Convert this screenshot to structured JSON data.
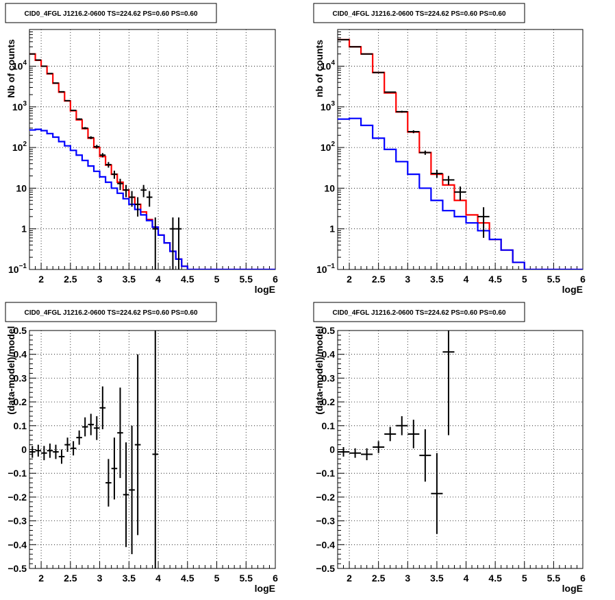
{
  "chart_data": [
    {
      "type": "histogram-logy",
      "title": "CID0_4FGL J1216.2-0600 TS=224.62 PS=0.60 PS=0.60",
      "xlabel": "logE",
      "ylabel": "Nb of counts",
      "xlim": [
        1.8,
        6.0
      ],
      "ylim": [
        0.1,
        80000
      ],
      "log_y": true,
      "grid": true,
      "x_ticks": [
        "2",
        "2.5",
        "3",
        "3.5",
        "4",
        "4.5",
        "5",
        "5.5",
        "6"
      ],
      "y_ticks": [
        "10^-1",
        "1",
        "10",
        "10^2",
        "10^3",
        "10^4"
      ],
      "bin_edges": [
        1.8,
        1.9,
        2.0,
        2.1,
        2.2,
        2.3,
        2.4,
        2.5,
        2.6,
        2.7,
        2.8,
        2.9,
        3.0,
        3.1,
        3.2,
        3.3,
        3.4,
        3.5,
        3.6,
        3.7,
        3.8,
        3.9,
        4.0,
        4.1,
        4.2,
        4.3,
        4.4,
        4.5,
        4.6,
        4.7,
        4.8,
        4.9,
        5.0,
        5.1,
        5.2,
        5.3,
        5.4,
        5.5,
        5.6,
        5.7,
        5.8,
        5.9,
        6.0
      ],
      "series": [
        {
          "color": "#ff0000",
          "values": [
            20000,
            14000,
            10000,
            6500,
            3800,
            2300,
            1400,
            800,
            480,
            290,
            170,
            100,
            60,
            37,
            22,
            14,
            9,
            6,
            4,
            2.6,
            1.7,
            1.1,
            0.7,
            0.45,
            0.28,
            0.18,
            0.12,
            0.1,
            0.1,
            0.1,
            0.1,
            0.1,
            0.1,
            0.1,
            0.1,
            0.1,
            0.1,
            0.1,
            0.1,
            0.1,
            0.1,
            0.1
          ]
        },
        {
          "color": "#0000ff",
          "values": [
            270,
            280,
            260,
            220,
            180,
            140,
            110,
            85,
            65,
            48,
            35,
            26,
            19,
            14,
            10,
            7.5,
            5.5,
            4,
            3,
            2.2,
            1.6,
            1.1,
            0.7,
            0.45,
            0.28,
            0.18,
            0.12,
            0.1,
            0.1,
            0.1,
            0.1,
            0.1,
            0.1,
            0.1,
            0.1,
            0.1,
            0.1,
            0.1,
            0.1,
            0.1,
            0.1,
            0.1
          ]
        }
      ],
      "points": [
        {
          "x": 1.85,
          "y": 20000,
          "err": 200
        },
        {
          "x": 1.95,
          "y": 14200,
          "err": 150
        },
        {
          "x": 2.05,
          "y": 10000,
          "err": 120
        },
        {
          "x": 2.15,
          "y": 6600,
          "err": 90
        },
        {
          "x": 2.25,
          "y": 3850,
          "err": 70
        },
        {
          "x": 2.35,
          "y": 2350,
          "err": 55
        },
        {
          "x": 2.45,
          "y": 1420,
          "err": 40
        },
        {
          "x": 2.55,
          "y": 820,
          "err": 30
        },
        {
          "x": 2.65,
          "y": 500,
          "err": 22
        },
        {
          "x": 2.75,
          "y": 300,
          "err": 18
        },
        {
          "x": 2.85,
          "y": 175,
          "err": 14
        },
        {
          "x": 2.95,
          "y": 105,
          "err": 11
        },
        {
          "x": 3.05,
          "y": 65,
          "err": 8
        },
        {
          "x": 3.15,
          "y": 38,
          "err": 6
        },
        {
          "x": 3.25,
          "y": 22,
          "err": 5
        },
        {
          "x": 3.35,
          "y": 13,
          "err": 4
        },
        {
          "x": 3.45,
          "y": 9,
          "err": 3
        },
        {
          "x": 3.55,
          "y": 6,
          "err": 2.5
        },
        {
          "x": 3.65,
          "y": 4,
          "err": 2
        },
        {
          "x": 3.75,
          "y": 9,
          "err": 3
        },
        {
          "x": 3.85,
          "y": 6,
          "err": 2.5
        },
        {
          "x": 3.95,
          "y": 1,
          "err": 0.9
        },
        {
          "x": 4.25,
          "y": 1,
          "err": 0.9
        },
        {
          "x": 4.35,
          "y": 1,
          "err": 0.9
        }
      ]
    },
    {
      "type": "histogram-logy",
      "title": "CID0_4FGL J1216.2-0600 TS=224.62 PS=0.60 PS=0.60",
      "xlabel": "logE",
      "ylabel": "nb of counts",
      "xlim": [
        1.8,
        6.0
      ],
      "ylim": [
        0.1,
        80000
      ],
      "log_y": true,
      "grid": true,
      "x_ticks": [
        "2",
        "2.5",
        "3",
        "3.5",
        "4",
        "4.5",
        "5",
        "5.5",
        "6"
      ],
      "y_ticks": [
        "10^-1",
        "1",
        "10",
        "10^2",
        "10^3",
        "10^4"
      ],
      "bin_edges": [
        1.8,
        2.0,
        2.2,
        2.4,
        2.6,
        2.8,
        3.0,
        3.2,
        3.4,
        3.6,
        3.8,
        4.0,
        4.2,
        4.4,
        4.6,
        4.8,
        5.0,
        5.2,
        5.4,
        5.6,
        5.8,
        6.0
      ],
      "series": [
        {
          "color": "#ff0000",
          "values": [
            45000,
            30000,
            20000,
            7000,
            2200,
            750,
            240,
            75,
            22,
            12,
            5,
            2.2,
            1.4,
            0.55,
            0.3,
            0.15,
            0.1,
            0.1,
            0.1,
            0.1,
            0.1
          ]
        },
        {
          "color": "#0000ff",
          "values": [
            500,
            520,
            350,
            170,
            90,
            45,
            22,
            10,
            5,
            2.8,
            2,
            1.4,
            0.9,
            0.55,
            0.3,
            0.15,
            0.1,
            0.1,
            0.1,
            0.1,
            0.1
          ]
        }
      ],
      "points": [
        {
          "x": 1.9,
          "y": 45000,
          "err": 400
        },
        {
          "x": 2.1,
          "y": 30000,
          "err": 300
        },
        {
          "x": 2.3,
          "y": 20000,
          "err": 250
        },
        {
          "x": 2.5,
          "y": 7000,
          "err": 150
        },
        {
          "x": 2.7,
          "y": 2300,
          "err": 80
        },
        {
          "x": 2.9,
          "y": 760,
          "err": 40
        },
        {
          "x": 3.1,
          "y": 245,
          "err": 20
        },
        {
          "x": 3.3,
          "y": 75,
          "err": 9
        },
        {
          "x": 3.5,
          "y": 23,
          "err": 5
        },
        {
          "x": 3.7,
          "y": 16,
          "err": 4
        },
        {
          "x": 3.9,
          "y": 8,
          "err": 3
        },
        {
          "x": 4.3,
          "y": 2,
          "err": 1.4
        }
      ]
    },
    {
      "type": "scatter-errorbar",
      "title": "CID0_4FGL J1216.2-0600 TS=224.62 PS=0.60 PS=0.60",
      "xlabel": "logE",
      "ylabel": "(data-model)/model",
      "xlim": [
        1.8,
        6.0
      ],
      "ylim": [
        -0.5,
        0.5
      ],
      "grid": true,
      "x_ticks": [
        "2",
        "2.5",
        "3",
        "3.5",
        "4",
        "4.5",
        "5",
        "5.5",
        "6"
      ],
      "y_ticks": [
        "−0.5",
        "−0.4",
        "−0.3",
        "−0.2",
        "−0.1",
        "0",
        "0.1",
        "0.2",
        "0.3",
        "0.4",
        "0.5"
      ],
      "points": [
        {
          "x": 1.85,
          "y": -0.01,
          "err": 0.025
        },
        {
          "x": 1.95,
          "y": -0.005,
          "err": 0.025
        },
        {
          "x": 2.05,
          "y": -0.015,
          "err": 0.03
        },
        {
          "x": 2.15,
          "y": -0.005,
          "err": 0.03
        },
        {
          "x": 2.25,
          "y": -0.01,
          "err": 0.03
        },
        {
          "x": 2.35,
          "y": -0.03,
          "err": 0.03
        },
        {
          "x": 2.45,
          "y": 0.02,
          "err": 0.03
        },
        {
          "x": 2.55,
          "y": 0.005,
          "err": 0.03
        },
        {
          "x": 2.65,
          "y": 0.05,
          "err": 0.03
        },
        {
          "x": 2.75,
          "y": 0.095,
          "err": 0.04
        },
        {
          "x": 2.85,
          "y": 0.105,
          "err": 0.045
        },
        {
          "x": 2.95,
          "y": 0.09,
          "err": 0.05
        },
        {
          "x": 3.05,
          "y": 0.175,
          "err": 0.09
        },
        {
          "x": 3.15,
          "y": -0.14,
          "err": 0.1
        },
        {
          "x": 3.25,
          "y": -0.08,
          "err": 0.13
        },
        {
          "x": 3.35,
          "y": 0.07,
          "err": 0.19
        },
        {
          "x": 3.45,
          "y": -0.19,
          "err": 0.22
        },
        {
          "x": 3.55,
          "y": -0.17,
          "err": 0.27
        },
        {
          "x": 3.65,
          "y": 0.02,
          "err": 0.38
        },
        {
          "x": 3.95,
          "y": -0.02,
          "err": 0.6
        }
      ]
    },
    {
      "type": "scatter-errorbar",
      "title": "CID0_4FGL J1216.2-0600 TS=224.62 PS=0.60 PS=0.60",
      "xlabel": "logE",
      "ylabel": "(data-model)/model",
      "xlim": [
        1.8,
        6.0
      ],
      "ylim": [
        -0.5,
        0.5
      ],
      "grid": true,
      "x_ticks": [
        "2",
        "2.5",
        "3",
        "3.5",
        "4",
        "4.5",
        "5",
        "5.5",
        "6"
      ],
      "y_ticks": [
        "−0.5",
        "−0.4",
        "−0.3",
        "−0.2",
        "−0.1",
        "0",
        "0.1",
        "0.2",
        "0.3",
        "0.4",
        "0.5"
      ],
      "points": [
        {
          "x": 1.9,
          "y": -0.01,
          "err": 0.02
        },
        {
          "x": 2.1,
          "y": -0.015,
          "err": 0.02
        },
        {
          "x": 2.3,
          "y": -0.02,
          "err": 0.025
        },
        {
          "x": 2.5,
          "y": 0.01,
          "err": 0.025
        },
        {
          "x": 2.7,
          "y": 0.065,
          "err": 0.03
        },
        {
          "x": 2.9,
          "y": 0.1,
          "err": 0.04
        },
        {
          "x": 3.1,
          "y": 0.065,
          "err": 0.06
        },
        {
          "x": 3.3,
          "y": -0.025,
          "err": 0.11
        },
        {
          "x": 3.5,
          "y": -0.185,
          "err": 0.17
        },
        {
          "x": 3.7,
          "y": 0.41,
          "err": 0.35
        }
      ]
    }
  ]
}
